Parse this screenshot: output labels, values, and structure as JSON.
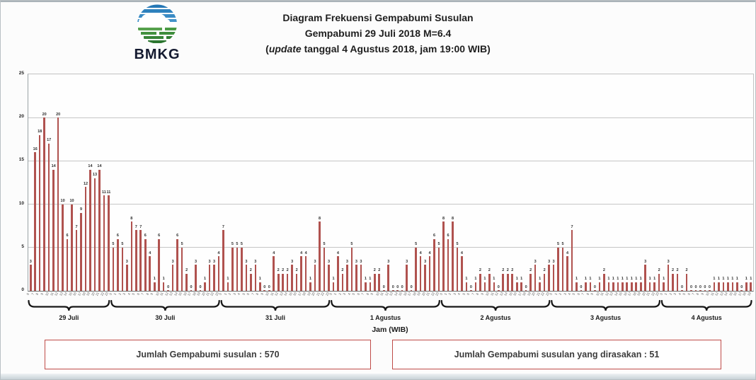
{
  "header": {
    "logo_text": "BMKG",
    "title_line1": "Diagram Frekuensi Gempabumi Susulan",
    "title_line2": "Gempabumi 29 Juli 2018 M=6.4",
    "title_line3_open": "(",
    "title_line3_italic": "update",
    "title_line3_rest": " tanggal 4 Agustus 2018, jam 19:00 WIB)"
  },
  "chart_data": {
    "type": "bar",
    "title": "Diagram Frekuensi Gempabumi Susulan Gempabumi 29 Juli 2018 M=6.4 (update tanggal 4 Agustus 2018, jam 19:00 WIB)",
    "xlabel": "Jam (WIB)",
    "ylabel": "",
    "ylim": [
      0,
      25
    ],
    "yticks": [
      0,
      5,
      10,
      15,
      20,
      25
    ],
    "grid": true,
    "legend": "none",
    "bar_color": "#b0524f",
    "grid_color": "#c6c6c6",
    "x_unit": "hour of day (WIB), per-day groups",
    "groups": [
      {
        "label": "29 Juli",
        "start_hour": 6,
        "values": [
          3,
          16,
          18,
          20,
          17,
          14,
          20,
          10,
          6,
          10,
          7,
          9,
          12,
          14,
          13,
          14,
          11,
          11
        ]
      },
      {
        "label": "30 Juli",
        "start_hour": 0,
        "values": [
          5,
          6,
          5,
          3,
          8,
          7,
          7,
          6,
          4,
          1,
          6,
          1,
          0,
          3,
          6,
          5,
          2,
          0,
          3,
          0,
          1,
          3,
          3,
          4
        ]
      },
      {
        "label": "31 Juli",
        "start_hour": 0,
        "values": [
          7,
          1,
          5,
          5,
          5,
          3,
          2,
          3,
          1,
          0,
          0,
          4,
          2,
          2,
          2,
          3,
          2,
          4,
          4,
          1,
          3,
          8,
          5,
          3
        ]
      },
      {
        "label": "1 Agustus",
        "start_hour": 0,
        "values": [
          1,
          4,
          2,
          3,
          5,
          3,
          3,
          1,
          1,
          2,
          2,
          0,
          3,
          0,
          0,
          0,
          3,
          0,
          5,
          4,
          3,
          4,
          6,
          5
        ]
      },
      {
        "label": "2 Agustus",
        "start_hour": 0,
        "values": [
          8,
          6,
          8,
          5,
          4,
          1,
          0,
          1,
          2,
          1,
          2,
          1,
          0,
          2,
          2,
          2,
          1,
          1,
          0,
          2,
          3,
          1,
          2,
          3
        ]
      },
      {
        "label": "3 Agustus",
        "start_hour": 0,
        "values": [
          3,
          5,
          5,
          4,
          7,
          1,
          0,
          1,
          1,
          0,
          1,
          2,
          1,
          1,
          1,
          1,
          1,
          1,
          1,
          1,
          3,
          1,
          1,
          2
        ]
      },
      {
        "label": "4 Agustus",
        "start_hour": 0,
        "values": [
          1,
          3,
          2,
          2,
          0,
          2,
          0,
          0,
          0,
          0,
          0,
          1,
          1,
          1,
          1,
          1,
          1,
          0,
          1,
          1
        ]
      }
    ],
    "total_aftershocks": 570,
    "total_felt": 51
  },
  "footer": {
    "box1_text": "Jumlah Gempabumi susulan : 570",
    "box2_text": "Jumlah Gempabumi susulan yang dirasakan : 51"
  }
}
